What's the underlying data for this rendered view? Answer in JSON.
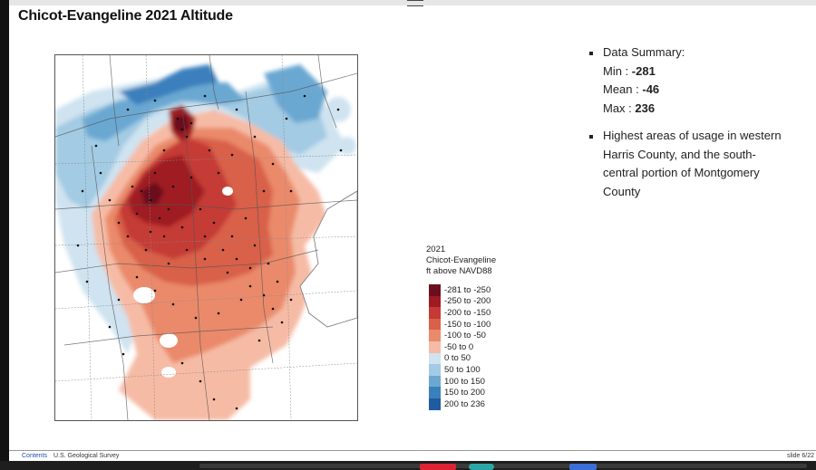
{
  "title": "Chicot-Evangeline 2021 Altitude",
  "summary": {
    "heading": "Data Summary:",
    "min_label": "Min : ",
    "min_value": "-281",
    "mean_label": "Mean : ",
    "mean_value": "-46",
    "max_label": "Max : ",
    "max_value": "236",
    "note_lines": [
      "Highest areas of usage in western",
      "Harris County, and the south-",
      "central portion of Montgomery",
      "County"
    ]
  },
  "legend": {
    "title_lines": [
      "2021",
      "Chicot-Evangeline",
      "ft above NAVD88"
    ],
    "classes": [
      {
        "label": "-281 to -250",
        "color": "#6b0f1e"
      },
      {
        "label": "-250 to -200",
        "color": "#9e1b24"
      },
      {
        "label": "-200 to -150",
        "color": "#c53a35"
      },
      {
        "label": "-150 to -100",
        "color": "#d9604a"
      },
      {
        "label": "-100 to -50",
        "color": "#ea8a6b"
      },
      {
        "label": "-50 to 0",
        "color": "#f6bba5"
      },
      {
        "label": "0 to 50",
        "color": "#cfe3f0"
      },
      {
        "label": "50 to 100",
        "color": "#a3cbe3"
      },
      {
        "label": "100 to 150",
        "color": "#6aa8d2"
      },
      {
        "label": "150 to 200",
        "color": "#3a80bd"
      },
      {
        "label": "200 to 236",
        "color": "#1f5ba1"
      }
    ]
  },
  "footer": {
    "contents": "Contents",
    "org": "U.S. Geological Survey",
    "slide": "slide 6/22"
  }
}
